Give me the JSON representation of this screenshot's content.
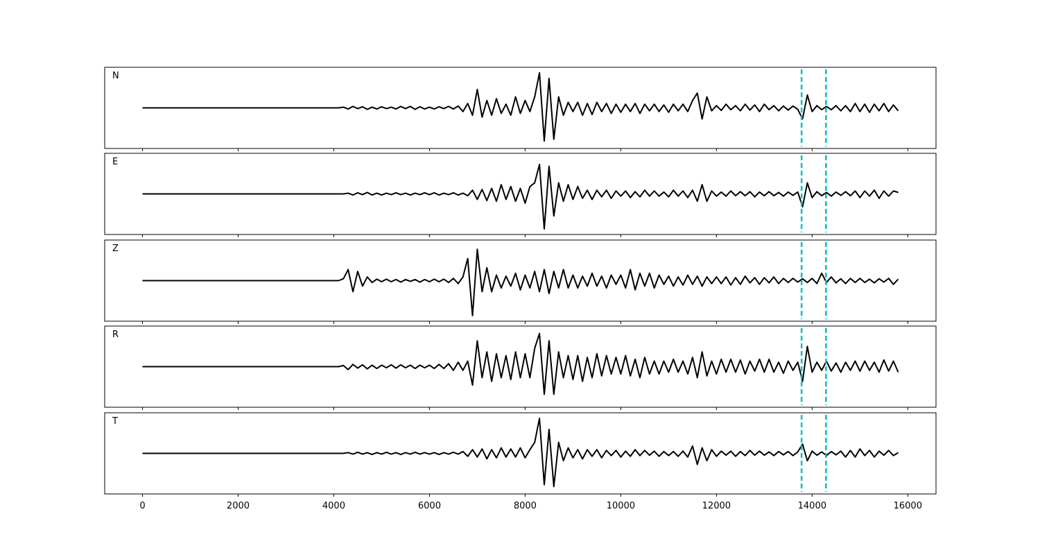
{
  "chart_data": {
    "type": "line",
    "x": [
      0,
      100,
      200,
      300,
      400,
      500,
      600,
      700,
      800,
      900,
      1000,
      1100,
      1200,
      1300,
      1400,
      1500,
      1600,
      1700,
      1800,
      1900,
      2000,
      2100,
      2200,
      2300,
      2400,
      2500,
      2600,
      2700,
      2800,
      2900,
      3000,
      3100,
      3200,
      3300,
      3400,
      3500,
      3600,
      3700,
      3800,
      3900,
      4000,
      4100,
      4200,
      4300,
      4400,
      4500,
      4600,
      4700,
      4800,
      4900,
      5000,
      5100,
      5200,
      5300,
      5400,
      5500,
      5600,
      5700,
      5800,
      5900,
      6000,
      6100,
      6200,
      6300,
      6400,
      6500,
      6600,
      6700,
      6800,
      6900,
      7000,
      7100,
      7200,
      7300,
      7400,
      7500,
      7600,
      7700,
      7800,
      7900,
      8000,
      8100,
      8200,
      8300,
      8400,
      8500,
      8600,
      8700,
      8800,
      8900,
      9000,
      9100,
      9200,
      9300,
      9400,
      9500,
      9600,
      9700,
      9800,
      9900,
      10000,
      10100,
      10200,
      10300,
      10400,
      10500,
      10600,
      10700,
      10800,
      10900,
      11000,
      11100,
      11200,
      11300,
      11400,
      11500,
      11600,
      11700,
      11800,
      11900,
      12000,
      12100,
      12200,
      12300,
      12400,
      12500,
      12600,
      12700,
      12800,
      12900,
      13000,
      13100,
      13200,
      13300,
      13400,
      13500,
      13600,
      13700,
      13800,
      13900,
      14000,
      14100,
      14200,
      14300,
      14400,
      14500,
      14600,
      14700,
      14800,
      14900,
      15000,
      15100,
      15200,
      15300,
      15400,
      15500,
      15600,
      15700,
      15800
    ],
    "xlim": [
      -790,
      16590
    ],
    "xticks": [
      0,
      2000,
      4000,
      6000,
      8000,
      10000,
      12000,
      14000,
      16000
    ],
    "ylim": [
      -1.1,
      1.1
    ],
    "series": [
      {
        "name": "N",
        "color": "#000000",
        "values": [
          0,
          0,
          0,
          0,
          0,
          0,
          0,
          0,
          0,
          0,
          0,
          0,
          0,
          0,
          0,
          0,
          0,
          0,
          0,
          0,
          0,
          0,
          0,
          0,
          0,
          0,
          0,
          0,
          0,
          0,
          0,
          0,
          0,
          0,
          0,
          0,
          0,
          0,
          0,
          0,
          0,
          0,
          0.02,
          -0.03,
          0.04,
          -0.02,
          0.03,
          -0.04,
          0.02,
          -0.03,
          0.03,
          -0.02,
          0.02,
          -0.03,
          0.04,
          -0.02,
          0.04,
          -0.04,
          0.03,
          -0.03,
          0.02,
          -0.03,
          0.03,
          -0.02,
          0.04,
          -0.03,
          0.05,
          -0.1,
          0.12,
          -0.2,
          0.5,
          -0.25,
          0.2,
          -0.2,
          0.25,
          -0.15,
          0.1,
          -0.2,
          0.3,
          -0.15,
          0.2,
          -0.1,
          0.3,
          0.95,
          -0.9,
          0.8,
          -0.85,
          0.3,
          -0.2,
          0.15,
          -0.1,
          0.15,
          -0.2,
          0.12,
          -0.18,
          0.15,
          -0.1,
          0.12,
          -0.15,
          0.1,
          -0.12,
          0.1,
          -0.1,
          0.12,
          -0.15,
          0.1,
          -0.08,
          0.1,
          -0.1,
          0.08,
          -0.12,
          0.1,
          -0.08,
          0.1,
          -0.1,
          0.2,
          0.4,
          -0.3,
          0.3,
          -0.08,
          0.06,
          -0.07,
          0.1,
          -0.05,
          0.06,
          -0.08,
          0.1,
          -0.06,
          0.08,
          -0.1,
          0.1,
          -0.05,
          0.06,
          -0.08,
          0.05,
          -0.06,
          0.05,
          -0.04,
          -0.3,
          0.35,
          -0.1,
          0.06,
          -0.05,
          0.04,
          -0.05,
          0.06,
          -0.08,
          0.06,
          -0.1,
          0.12,
          -0.1,
          0.1,
          -0.12,
          0.1,
          -0.08,
          0.12,
          -0.1,
          0.08,
          -0.08
        ]
      },
      {
        "name": "E",
        "color": "#000000",
        "values": [
          0,
          0,
          0,
          0,
          0,
          0,
          0,
          0,
          0,
          0,
          0,
          0,
          0,
          0,
          0,
          0,
          0,
          0,
          0,
          0,
          0,
          0,
          0,
          0,
          0,
          0,
          0,
          0,
          0,
          0,
          0,
          0,
          0,
          0,
          0,
          0,
          0,
          0,
          0,
          0,
          0,
          0,
          0,
          0.02,
          -0.03,
          0.03,
          -0.02,
          0.04,
          -0.03,
          0.02,
          -0.03,
          0.02,
          -0.02,
          0.03,
          -0.02,
          0.02,
          -0.03,
          0.02,
          -0.02,
          0.03,
          -0.02,
          0.03,
          -0.03,
          0.02,
          -0.02,
          0.03,
          -0.03,
          0.02,
          -0.05,
          0.1,
          -0.15,
          0.12,
          -0.18,
          0.15,
          -0.2,
          0.25,
          -0.15,
          0.2,
          -0.2,
          0.15,
          -0.25,
          0.2,
          0.3,
          0.8,
          -0.95,
          0.75,
          -0.6,
          0.3,
          -0.2,
          0.25,
          -0.15,
          0.2,
          -0.12,
          0.1,
          -0.15,
          0.1,
          -0.08,
          0.1,
          -0.12,
          0.08,
          -0.06,
          0.08,
          -0.1,
          0.06,
          -0.08,
          0.1,
          -0.06,
          0.08,
          -0.06,
          0.05,
          -0.08,
          0.1,
          -0.06,
          0.08,
          -0.1,
          0.1,
          -0.2,
          0.25,
          -0.2,
          0.08,
          -0.06,
          0.05,
          -0.06,
          0.08,
          -0.05,
          0.06,
          -0.05,
          0.06,
          -0.08,
          0.05,
          -0.05,
          0.06,
          -0.05,
          0.04,
          -0.06,
          0.05,
          -0.04,
          0.05,
          -0.35,
          0.3,
          -0.1,
          0.06,
          -0.05,
          0.04,
          -0.06,
          0.05,
          -0.04,
          0.06,
          -0.05,
          0.08,
          -0.1,
          0.08,
          -0.06,
          0.1,
          -0.12,
          0.08,
          -0.06,
          0.08,
          0.04
        ]
      },
      {
        "name": "Z",
        "color": "#000000",
        "values": [
          0,
          0,
          0,
          0,
          0,
          0,
          0,
          0,
          0,
          0,
          0,
          0,
          0,
          0,
          0,
          0,
          0,
          0,
          0,
          0,
          0,
          0,
          0,
          0,
          0,
          0,
          0,
          0,
          0,
          0,
          0,
          0,
          0,
          0,
          0,
          0,
          0,
          0,
          0,
          0,
          0,
          0,
          0.05,
          0.3,
          -0.3,
          0.25,
          -0.15,
          0.1,
          -0.05,
          0.04,
          -0.03,
          0.04,
          -0.03,
          0.03,
          -0.04,
          0.03,
          -0.02,
          0.03,
          -0.04,
          0.03,
          -0.03,
          0.04,
          -0.03,
          0.04,
          -0.05,
          0.06,
          -0.08,
          0.1,
          0.6,
          -0.95,
          0.85,
          -0.3,
          0.35,
          -0.3,
          0.15,
          -0.2,
          0.12,
          -0.15,
          0.2,
          -0.25,
          0.15,
          -0.2,
          0.25,
          -0.3,
          0.3,
          -0.35,
          0.25,
          -0.2,
          0.3,
          -0.2,
          0.15,
          -0.2,
          0.12,
          -0.15,
          0.2,
          -0.15,
          0.12,
          -0.2,
          0.15,
          -0.1,
          0.15,
          -0.2,
          0.3,
          -0.25,
          0.2,
          -0.15,
          0.2,
          -0.2,
          0.15,
          -0.1,
          0.12,
          -0.15,
          0.1,
          -0.12,
          0.15,
          -0.1,
          0.12,
          -0.15,
          0.1,
          -0.08,
          0.1,
          -0.08,
          0.1,
          -0.12,
          0.08,
          -0.1,
          0.12,
          -0.06,
          0.08,
          -0.1,
          0.08,
          -0.06,
          0.1,
          -0.08,
          0.06,
          -0.05,
          0.06,
          -0.04,
          0.05,
          -0.05,
          0.06,
          -0.08,
          0.2,
          -0.05,
          0.1,
          -0.06,
          0.05,
          -0.08,
          0.06,
          -0.05,
          0.06,
          -0.05,
          0.04,
          -0.06,
          0.05,
          -0.04,
          0.06,
          -0.1,
          0.04
        ]
      },
      {
        "name": "R",
        "color": "#000000",
        "values": [
          0,
          0,
          0,
          0,
          0,
          0,
          0,
          0,
          0,
          0,
          0,
          0,
          0,
          0,
          0,
          0,
          0,
          0,
          0,
          0,
          0,
          0,
          0,
          0,
          0,
          0,
          0,
          0,
          0,
          0,
          0,
          0,
          0,
          0,
          0,
          0,
          0,
          0,
          0,
          0,
          0,
          0,
          0.03,
          -0.08,
          0.06,
          -0.04,
          0.05,
          -0.06,
          0.04,
          -0.05,
          0.04,
          -0.03,
          0.05,
          -0.04,
          0.05,
          -0.03,
          0.04,
          -0.05,
          0.04,
          -0.03,
          0.04,
          -0.05,
          0.06,
          -0.05,
          0.08,
          -0.1,
          0.12,
          -0.1,
          0.15,
          -0.5,
          0.7,
          -0.3,
          0.4,
          -0.4,
          0.35,
          -0.3,
          0.3,
          -0.35,
          0.4,
          -0.3,
          0.35,
          -0.3,
          0.5,
          0.9,
          -0.75,
          0.7,
          -0.75,
          0.4,
          -0.3,
          0.3,
          -0.35,
          0.3,
          -0.4,
          0.25,
          -0.3,
          0.35,
          -0.25,
          0.3,
          -0.2,
          0.25,
          -0.2,
          0.3,
          -0.25,
          0.2,
          -0.3,
          0.25,
          -0.2,
          0.15,
          -0.2,
          0.15,
          -0.15,
          0.2,
          -0.15,
          0.15,
          -0.2,
          0.25,
          -0.3,
          0.4,
          -0.25,
          0.15,
          -0.2,
          0.2,
          -0.15,
          0.2,
          -0.15,
          0.18,
          -0.2,
          0.15,
          -0.12,
          0.2,
          -0.15,
          0.2,
          -0.15,
          0.12,
          -0.18,
          0.15,
          -0.1,
          0.12,
          -0.4,
          0.55,
          -0.15,
          0.12,
          -0.1,
          0.15,
          -0.12,
          0.1,
          -0.15,
          0.12,
          -0.1,
          0.15,
          -0.12,
          0.15,
          -0.1,
          0.12,
          -0.15,
          0.18,
          -0.12,
          0.15,
          -0.15
        ]
      },
      {
        "name": "T",
        "color": "#000000",
        "values": [
          0,
          0,
          0,
          0,
          0,
          0,
          0,
          0,
          0,
          0,
          0,
          0,
          0,
          0,
          0,
          0,
          0,
          0,
          0,
          0,
          0,
          0,
          0,
          0,
          0,
          0,
          0,
          0,
          0,
          0,
          0,
          0,
          0,
          0,
          0,
          0,
          0,
          0,
          0,
          0,
          0,
          0,
          0,
          0.02,
          -0.02,
          0.03,
          -0.02,
          0.02,
          -0.03,
          0.02,
          -0.02,
          0.03,
          -0.02,
          0.02,
          -0.03,
          0.02,
          -0.02,
          0.03,
          -0.02,
          0.02,
          -0.02,
          0.02,
          -0.03,
          0.02,
          -0.02,
          0.03,
          -0.02,
          0.05,
          -0.08,
          0.1,
          -0.1,
          0.12,
          -0.15,
          0.1,
          -0.12,
          0.15,
          -0.1,
          0.12,
          -0.1,
          0.15,
          -0.12,
          0.1,
          0.3,
          0.95,
          -0.85,
          0.65,
          -0.9,
          0.3,
          -0.2,
          0.15,
          -0.12,
          0.1,
          -0.15,
          0.1,
          -0.08,
          0.1,
          -0.12,
          0.08,
          -0.06,
          0.08,
          -0.1,
          0.06,
          -0.08,
          0.1,
          -0.06,
          0.08,
          -0.05,
          0.06,
          -0.08,
          0.05,
          -0.06,
          0.05,
          -0.08,
          0.06,
          -0.1,
          0.2,
          -0.3,
          0.15,
          -0.2,
          0.1,
          -0.08,
          0.06,
          -0.05,
          0.06,
          -0.08,
          0.05,
          -0.06,
          0.08,
          -0.05,
          0.06,
          -0.05,
          0.04,
          -0.06,
          0.05,
          -0.04,
          0.05,
          -0.06,
          0.04,
          0.25,
          -0.2,
          0.06,
          -0.05,
          0.04,
          -0.06,
          0.05,
          -0.04,
          0.06,
          -0.1,
          0.08,
          -0.1,
          0.12,
          -0.06,
          0.08,
          -0.1,
          0.06,
          -0.05,
          0.08,
          -0.06,
          0.02
        ]
      }
    ],
    "vlines": {
      "x": [
        13780,
        14290
      ],
      "color": "#00bfbf"
    }
  }
}
